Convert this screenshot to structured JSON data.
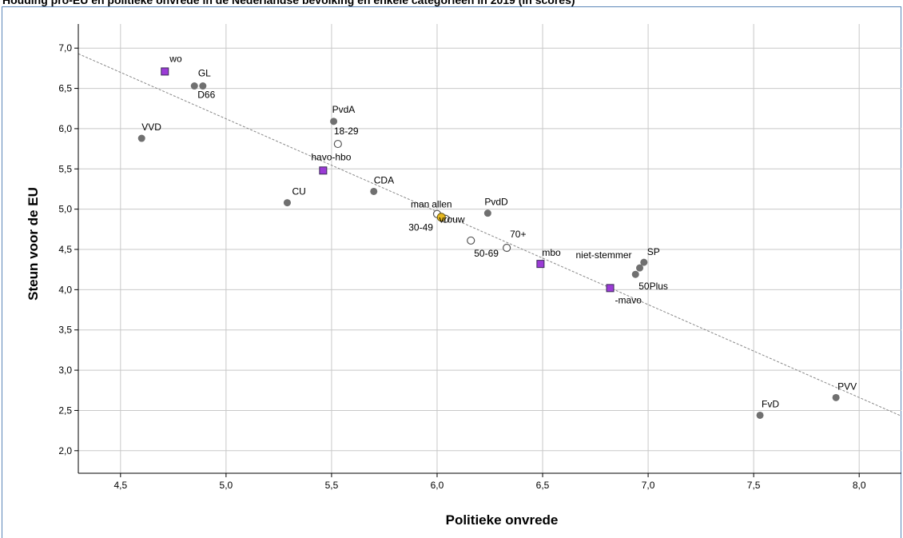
{
  "title": "Houding pro-EU en politieke onvrede in de Nederlandse bevolking en enkele categorieën in 2019 (in scores)",
  "colors": {
    "gridline": "#c8c8c8",
    "axis": "#000000",
    "party_point": "#707070",
    "education_point": "#9b3bd6",
    "education_stroke": "#3a2a55",
    "open_point_stroke": "#555555",
    "highlight_point": "#e6b820",
    "trendline": "#888888"
  },
  "chart_data": {
    "type": "scatter",
    "title": "Houding pro-EU en politieke onvrede in de Nederlandse bevolking en enkele categorieën in 2019 (in scores)",
    "xlabel": "Politieke onvrede",
    "ylabel": "Steun voor de EU",
    "xlim": [
      4.3,
      8.2
    ],
    "ylim": [
      1.72,
      7.3
    ],
    "xticks": [
      "4,5",
      "5,0",
      "5,5",
      "6,0",
      "6,5",
      "7,0",
      "7,5",
      "8,0"
    ],
    "yticks": [
      "2,0",
      "2,5",
      "3,0",
      "3,5",
      "4,0",
      "4,5",
      "5,0",
      "5,5",
      "6,0",
      "6,5",
      "7,0"
    ],
    "grid": true,
    "trendline": {
      "x1": 4.3,
      "y1": 6.93,
      "x2": 8.2,
      "y2": 2.43
    },
    "series": [
      {
        "kind": "party",
        "marker": "filled-circle",
        "points": [
          {
            "label": "GL",
            "x": 4.89,
            "y": 6.53
          },
          {
            "label": "D66",
            "x": 4.85,
            "y": 6.53
          },
          {
            "label": "VVD",
            "x": 4.6,
            "y": 5.88
          },
          {
            "label": "PvdA",
            "x": 5.51,
            "y": 6.09
          },
          {
            "label": "CU",
            "x": 5.29,
            "y": 5.08
          },
          {
            "label": "CDA",
            "x": 5.7,
            "y": 5.22
          },
          {
            "label": "PvdD",
            "x": 6.24,
            "y": 4.95
          },
          {
            "label": "SP",
            "x": 6.98,
            "y": 4.34
          },
          {
            "label": "niet-stemmer",
            "x": 6.96,
            "y": 4.27
          },
          {
            "label": "50Plus",
            "x": 6.94,
            "y": 4.19
          },
          {
            "label": "FvD",
            "x": 7.53,
            "y": 2.44
          },
          {
            "label": "PVV",
            "x": 7.89,
            "y": 2.66
          }
        ]
      },
      {
        "kind": "education",
        "marker": "square",
        "points": [
          {
            "label": "wo",
            "x": 4.71,
            "y": 6.71
          },
          {
            "label": "havo-hbo",
            "x": 5.46,
            "y": 5.48
          },
          {
            "label": "mbo",
            "x": 6.49,
            "y": 4.32
          },
          {
            "label": "-mavo",
            "x": 6.82,
            "y": 4.02
          }
        ]
      },
      {
        "kind": "demographic",
        "marker": "open-circle",
        "points": [
          {
            "label": "18-29",
            "x": 5.53,
            "y": 5.81
          },
          {
            "label": "man",
            "x": 6.0,
            "y": 4.94
          },
          {
            "label": "vrouw",
            "x": 6.04,
            "y": 4.88
          },
          {
            "label": "30-49",
            "x": 6.02,
            "y": 4.9
          },
          {
            "label": "50-69",
            "x": 6.16,
            "y": 4.61
          },
          {
            "label": "70+",
            "x": 6.33,
            "y": 4.52
          }
        ]
      },
      {
        "kind": "total",
        "marker": "highlight-circle",
        "points": [
          {
            "label": "allen",
            "x": 6.02,
            "y": 4.9
          }
        ]
      }
    ]
  }
}
